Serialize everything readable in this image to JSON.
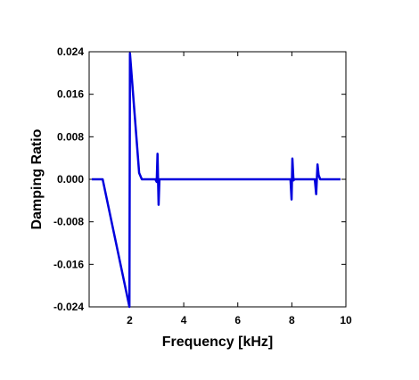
{
  "chart_data": {
    "type": "line",
    "title": "",
    "xlabel": "Frequency [kHz]",
    "ylabel": "Damping Ratio",
    "xlim": [
      0.5,
      10
    ],
    "ylim": [
      -0.024,
      0.024
    ],
    "x_ticks": [
      2,
      4,
      6,
      8,
      10
    ],
    "x_tick_labels": [
      "2",
      "4",
      "6",
      "8",
      "10"
    ],
    "y_ticks": [
      0.024,
      0.016,
      0.008,
      0.0,
      -0.008,
      -0.016,
      -0.024
    ],
    "y_tick_labels": [
      "0.024",
      "0.016",
      "0.008",
      "0.000",
      "-0.008",
      "-0.016",
      "-0.024"
    ],
    "grid": false,
    "legend": "none",
    "series": [
      {
        "color": "#0000dd",
        "x": [
          0.6,
          1.0,
          1.97,
          1.99,
          2.01,
          2.35,
          2.45,
          2.95,
          3.0,
          3.03,
          3.07,
          3.1,
          7.95,
          7.99,
          8.02,
          8.06,
          8.1,
          8.85,
          8.9,
          8.95,
          8.99,
          9.05,
          9.8
        ],
        "values": [
          0.0,
          0.0,
          -0.0235,
          -0.024,
          0.0237,
          0.0012,
          0.0,
          0.0,
          -0.0005,
          0.0048,
          -0.0048,
          0.0,
          0.0,
          -0.0038,
          0.0039,
          -0.0002,
          0.0,
          0.0,
          -0.0028,
          0.0028,
          0.0008,
          0.0,
          0.0
        ]
      }
    ]
  }
}
